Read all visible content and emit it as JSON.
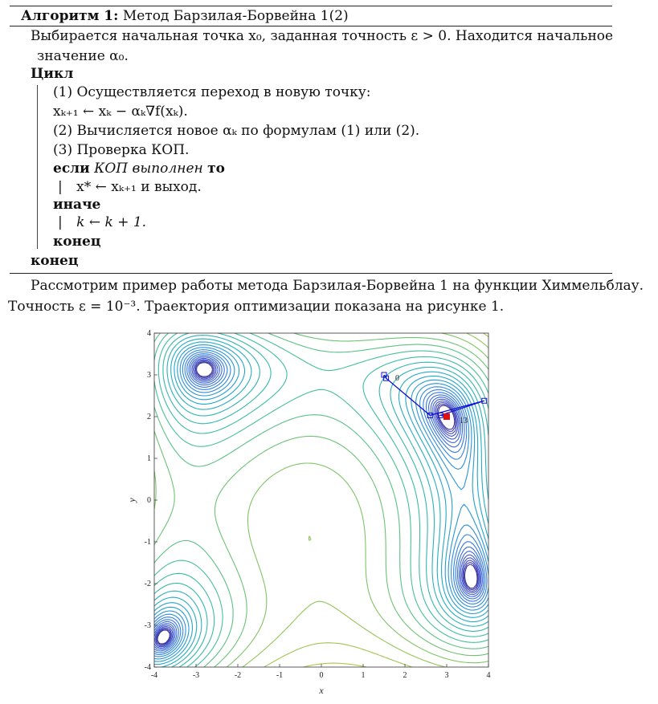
{
  "algorithm": {
    "caption_label": "Алгоритм 1:",
    "caption_title": "Метод Барзилая-Борвейна 1(2)",
    "init_line1": "Выбирается начальная точка x₀, заданная точность ε > 0. Находится начальное",
    "init_line2": "значение α₀.",
    "loop_kw": "Цикл",
    "step1": "(1) Осуществляется переход в новую точку:",
    "step1_formula": "xₖ₊₁ ← xₖ − αₖ∇f(xₖ).",
    "step2": "(2) Вычисляется новое αₖ по формулам (1) или (2).",
    "step3": "(3) Проверка КОП.",
    "if_kw": "если",
    "if_cond": "КОП выполнен",
    "then_kw": "то",
    "then_stmt_bullet": "|",
    "then_stmt": "x* ← xₖ₊₁ и выход.",
    "else_kw": "иначе",
    "else_stmt_bullet": "|",
    "else_stmt": "k ← k + 1.",
    "end_inner": "конец",
    "end_outer": "конец"
  },
  "paragraph": {
    "line1": "Рассмотрим пример работы метода Барзилая-Борвейна 1 на функции Химмельблау.",
    "line2": "Точность ε = 10⁻³. Траектория оптимизации показана на рисунке 1."
  },
  "chart_data": {
    "type": "contour",
    "function": "Himmelblau",
    "xlabel": "x",
    "ylabel": "y",
    "xlim": [
      -4,
      4
    ],
    "ylim": [
      -4,
      4
    ],
    "xticks": [
      "-4",
      "-3",
      "-2",
      "-1",
      "0",
      "1",
      "2",
      "3",
      "4"
    ],
    "yticks": [
      "-4",
      "-3",
      "-2",
      "-1",
      "0",
      "1",
      "2",
      "3",
      "4"
    ],
    "trajectory": {
      "color": "#1010d0",
      "points": [
        [
          1.5,
          3.0
        ],
        [
          1.55,
          2.92
        ],
        [
          2.6,
          2.03
        ],
        [
          3.9,
          2.38
        ],
        [
          2.85,
          2.03
        ],
        [
          3.0,
          2.0
        ]
      ],
      "start_label": "0",
      "end_label": "13",
      "final_point": [
        3.0,
        2.0
      ],
      "final_color": "#e01010"
    },
    "colormap": [
      "#3b2f9a",
      "#3d5bd6",
      "#2f86e0",
      "#20a9c8",
      "#3fbf9a",
      "#8cc65a",
      "#d6c440",
      "#f4e53a"
    ]
  }
}
